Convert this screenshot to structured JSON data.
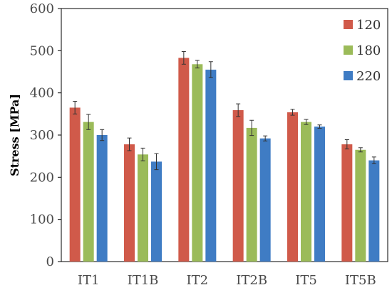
{
  "chart_data": {
    "type": "bar",
    "title": "",
    "xlabel": "",
    "ylabel": "Stress [MPa]",
    "ylim": [
      0,
      600
    ],
    "yticks": [
      0,
      100,
      200,
      300,
      400,
      500,
      600
    ],
    "grid": false,
    "legend_position": "top-right",
    "categories": [
      "IT1",
      "IT1B",
      "IT2",
      "IT2B",
      "IT5",
      "IT5B"
    ],
    "series": [
      {
        "name": "120",
        "color": "#d05a4a",
        "values": [
          365,
          278,
          483,
          359,
          354,
          278
        ],
        "errors": [
          15,
          15,
          15,
          15,
          7,
          11
        ]
      },
      {
        "name": "180",
        "color": "#9bbb59",
        "values": [
          331,
          254,
          468,
          317,
          331,
          265
        ],
        "errors": [
          18,
          15,
          9,
          18,
          6,
          5
        ]
      },
      {
        "name": "220",
        "color": "#3f7cc4",
        "values": [
          300,
          237,
          455,
          292,
          320,
          240
        ],
        "errors": [
          13,
          19,
          19,
          6,
          4,
          8
        ]
      }
    ]
  }
}
